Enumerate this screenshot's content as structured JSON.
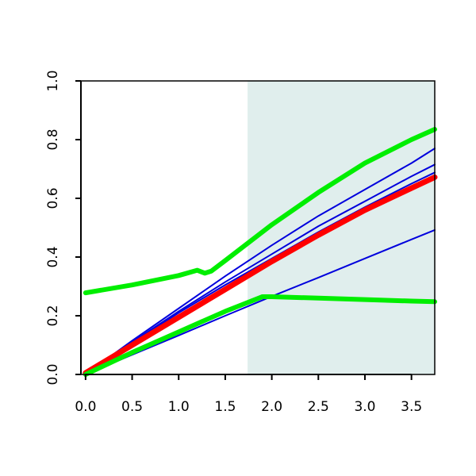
{
  "chart_data": {
    "type": "line",
    "title": "",
    "xlabel": "",
    "ylabel": "",
    "xlim": [
      -0.05,
      3.75
    ],
    "ylim": [
      0,
      1.0
    ],
    "xticks": [
      0.0,
      0.5,
      1.0,
      1.5,
      2.0,
      2.5,
      3.0,
      3.5
    ],
    "xtick_labels": [
      "0.0",
      "0.5",
      "1.0",
      "1.5",
      "2.0",
      "2.5",
      "3.0",
      "3.5"
    ],
    "yticks": [
      0.0,
      0.2,
      0.4,
      0.6,
      0.8,
      1.0
    ],
    "ytick_labels": [
      "0.0",
      "0.2",
      "0.4",
      "0.6",
      "0.8",
      "1.0"
    ],
    "grid": false,
    "legend": "none",
    "shaded_region": {
      "x_start": 1.74,
      "x_end": 3.75,
      "color": "#e0eeed"
    },
    "series": [
      {
        "color": "#0000dd",
        "width": 2,
        "x": [
          0,
          0.5,
          1.0,
          1.5,
          2.0,
          2.5,
          3.0,
          3.5,
          3.75
        ],
        "y": [
          0.0,
          0.115,
          0.225,
          0.335,
          0.44,
          0.54,
          0.63,
          0.72,
          0.77
        ]
      },
      {
        "color": "#0000dd",
        "width": 2,
        "x": [
          0,
          0.5,
          1.0,
          1.5,
          2.0,
          2.5,
          3.0,
          3.5,
          3.75
        ],
        "y": [
          0.0,
          0.11,
          0.215,
          0.315,
          0.41,
          0.505,
          0.59,
          0.675,
          0.715
        ]
      },
      {
        "color": "#0000dd",
        "width": 2,
        "x": [
          0,
          0.5,
          1.0,
          1.5,
          2.0,
          2.5,
          3.0,
          3.5,
          3.75
        ],
        "y": [
          0.0,
          0.107,
          0.21,
          0.305,
          0.395,
          0.485,
          0.57,
          0.65,
          0.688
        ]
      },
      {
        "color": "#0000dd",
        "width": 2,
        "x": [
          0,
          0.5,
          1.0,
          1.5,
          2.0,
          2.5,
          3.0,
          3.5,
          3.75
        ],
        "y": [
          0.0,
          0.067,
          0.133,
          0.2,
          0.266,
          0.33,
          0.395,
          0.46,
          0.492
        ]
      },
      {
        "color": "#ff0000",
        "width": 7,
        "x": [
          0,
          0.5,
          1.0,
          1.5,
          2.0,
          2.5,
          3.0,
          3.5,
          3.75
        ],
        "y": [
          0.005,
          0.1,
          0.195,
          0.29,
          0.385,
          0.475,
          0.56,
          0.635,
          0.672
        ]
      },
      {
        "color": "#00ee00",
        "width": 6,
        "x": [
          0,
          0.5,
          1.0,
          1.2,
          1.28,
          1.35,
          1.5,
          2.0,
          2.5,
          3.0,
          3.5,
          3.75
        ],
        "y": [
          0.278,
          0.305,
          0.337,
          0.355,
          0.345,
          0.352,
          0.388,
          0.51,
          0.62,
          0.72,
          0.8,
          0.835
        ]
      },
      {
        "color": "#00ee00",
        "width": 6,
        "x": [
          0,
          0.5,
          1.0,
          1.5,
          1.9,
          2.0,
          2.5,
          3.0,
          3.5,
          3.75
        ],
        "y": [
          0.0,
          0.075,
          0.145,
          0.215,
          0.265,
          0.265,
          0.26,
          0.255,
          0.25,
          0.248
        ]
      }
    ]
  }
}
